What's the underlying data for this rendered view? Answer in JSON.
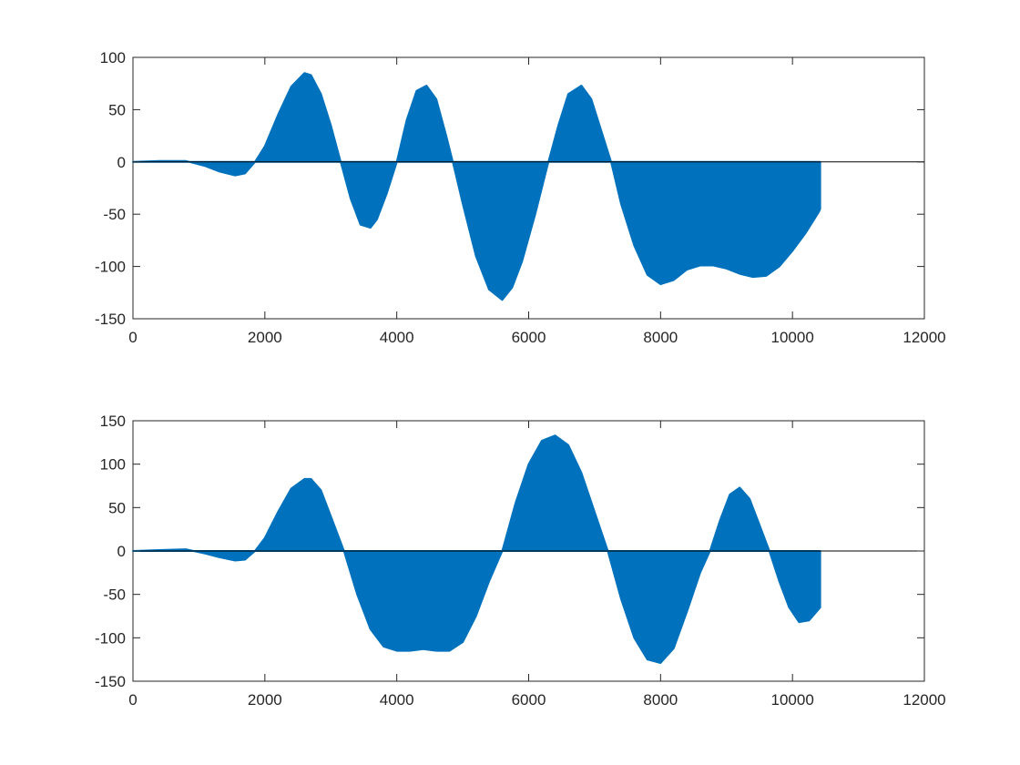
{
  "chart_data": [
    {
      "type": "area",
      "title": "",
      "xlabel": "",
      "ylabel": "",
      "xlim": [
        0,
        12000
      ],
      "ylim": [
        -150,
        100
      ],
      "xticks": [
        0,
        2000,
        4000,
        6000,
        8000,
        10000,
        12000
      ],
      "yticks": [
        100,
        50,
        0,
        -50,
        -100,
        -150
      ],
      "grid": false,
      "legend": "none",
      "color": "#0072BD",
      "baseline": 0,
      "series": [
        {
          "x": [
            0,
            400,
            800,
            1100,
            1300,
            1550,
            1700,
            1850,
            2000,
            2200,
            2400,
            2600,
            2700,
            2850,
            3000,
            3150,
            3300,
            3450,
            3600,
            3700,
            3850,
            4000,
            4150,
            4300,
            4450,
            4600,
            4750,
            4850,
            5000,
            5200,
            5400,
            5600,
            5750,
            5900,
            6100,
            6300,
            6450,
            6600,
            6800,
            6950,
            7100,
            7250,
            7400,
            7600,
            7800,
            8000,
            8200,
            8400,
            8600,
            8800,
            9000,
            9200,
            9400,
            9600,
            9800,
            10000,
            10200,
            10400,
            10420
          ],
          "y": [
            0,
            1,
            1,
            -4,
            -9,
            -13,
            -11,
            0,
            15,
            45,
            72,
            85,
            83,
            65,
            35,
            0,
            -35,
            -60,
            -63,
            -55,
            -30,
            0,
            40,
            68,
            73,
            60,
            25,
            0,
            -40,
            -90,
            -122,
            -132,
            -120,
            -95,
            -50,
            0,
            35,
            65,
            73,
            60,
            30,
            0,
            -40,
            -80,
            -108,
            -117,
            -113,
            -103,
            -99,
            -99,
            -102,
            -107,
            -110,
            -109,
            -100,
            -85,
            -68,
            -48,
            -45
          ]
        }
      ]
    },
    {
      "type": "area",
      "title": "",
      "xlabel": "",
      "ylabel": "",
      "xlim": [
        0,
        12000
      ],
      "ylim": [
        -150,
        150
      ],
      "xticks": [
        0,
        2000,
        4000,
        6000,
        8000,
        10000,
        12000
      ],
      "yticks": [
        150,
        100,
        50,
        0,
        -50,
        -100,
        -150
      ],
      "grid": false,
      "legend": "none",
      "color": "#0072BD",
      "baseline": 0,
      "series": [
        {
          "x": [
            0,
            400,
            800,
            1100,
            1300,
            1550,
            1700,
            1850,
            2000,
            2200,
            2400,
            2600,
            2700,
            2850,
            3000,
            3200,
            3400,
            3600,
            3800,
            4000,
            4200,
            4400,
            4600,
            4800,
            5000,
            5200,
            5400,
            5600,
            5800,
            6000,
            6200,
            6400,
            6600,
            6800,
            7000,
            7200,
            7400,
            7600,
            7800,
            8000,
            8200,
            8400,
            8600,
            8750,
            8900,
            9050,
            9200,
            9350,
            9500,
            9650,
            9800,
            9950,
            10100,
            10250,
            10400,
            10420
          ],
          "y": [
            0,
            1,
            2,
            -3,
            -7,
            -11,
            -10,
            0,
            15,
            45,
            72,
            83,
            83,
            70,
            40,
            0,
            -50,
            -90,
            -110,
            -115,
            -115,
            -113,
            -115,
            -115,
            -105,
            -75,
            -35,
            0,
            55,
            100,
            127,
            133,
            122,
            90,
            45,
            0,
            -55,
            -100,
            -125,
            -129,
            -112,
            -70,
            -25,
            0,
            35,
            65,
            73,
            60,
            30,
            0,
            -35,
            -65,
            -82,
            -80,
            -67,
            -65
          ]
        }
      ]
    }
  ]
}
